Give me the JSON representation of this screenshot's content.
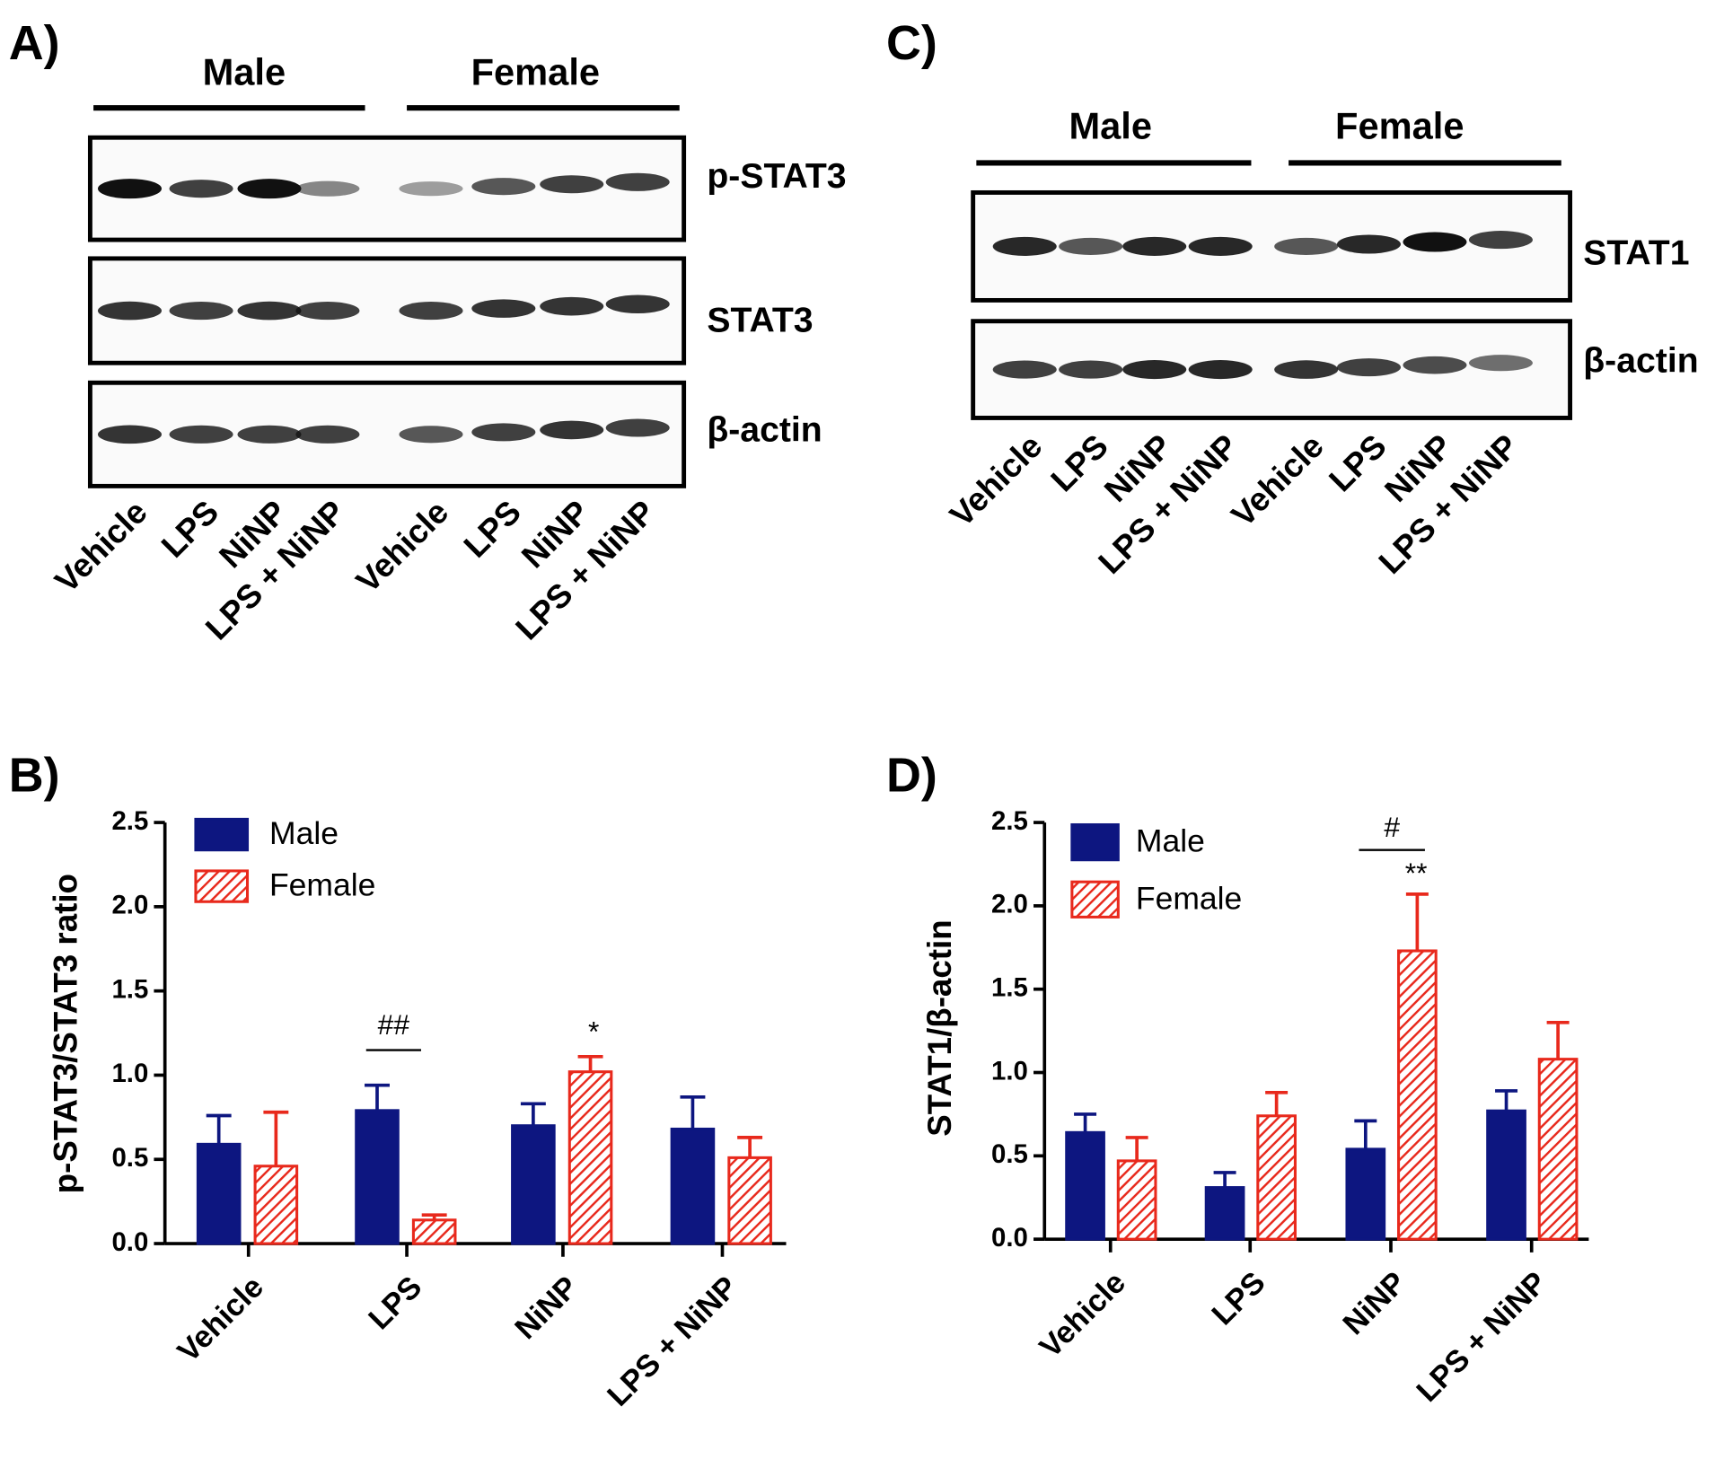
{
  "blots": [
    {
      "panel_label": "A)",
      "groups": [
        "Male",
        "Female"
      ],
      "rows": [
        "p-STAT3",
        "STAT3",
        "β-actin"
      ],
      "lanes": [
        "Vehicle",
        "LPS",
        "NiNP",
        "LPS + NiNP",
        "Vehicle",
        "LPS",
        "NiNP",
        "LPS + NiNP"
      ]
    },
    {
      "panel_label": "C)",
      "groups": [
        "Male",
        "Female"
      ],
      "rows": [
        "STAT1",
        "β-actin"
      ],
      "lanes": [
        "Vehicle",
        "LPS",
        "NiNP",
        "LPS + NiNP",
        "Vehicle",
        "LPS",
        "NiNP",
        "LPS + NiNP"
      ]
    }
  ],
  "chart_data": [
    {
      "type": "bar",
      "panel_label": "B)",
      "y_label": "p-STAT3/STAT3 ratio",
      "categories": [
        "Vehicle",
        "LPS",
        "NiNP",
        "LPS + NiNP"
      ],
      "series": [
        {
          "name": "Male",
          "color": "#0d1680",
          "hatch": false,
          "values": [
            0.59,
            0.79,
            0.7,
            0.68
          ],
          "errors": [
            0.17,
            0.15,
            0.13,
            0.19
          ]
        },
        {
          "name": "Female",
          "color": "#e8291c",
          "hatch": true,
          "values": [
            0.46,
            0.14,
            1.02,
            0.51
          ],
          "errors": [
            0.32,
            0.03,
            0.09,
            0.12
          ]
        }
      ],
      "ylim": [
        0,
        2.5
      ],
      "yticks": [
        {
          "value": 0,
          "label": "0.0"
        },
        0.5,
        {
          "value": 1,
          "label": "1.0"
        },
        1.5,
        {
          "value": 2,
          "label": "2.0"
        },
        2.5
      ],
      "annotations": [
        "##",
        "*"
      ],
      "legend": "upper left",
      "grid": false
    },
    {
      "type": "bar",
      "panel_label": "D)",
      "y_label": "STAT1/β-actin",
      "categories": [
        "Vehicle",
        "LPS",
        "NiNP",
        "LPS + NiNP"
      ],
      "series": [
        {
          "name": "Male",
          "color": "#0d1680",
          "hatch": false,
          "values": [
            0.64,
            0.31,
            0.54,
            0.77
          ],
          "errors": [
            0.11,
            0.09,
            0.17,
            0.12
          ]
        },
        {
          "name": "Female",
          "color": "#e8291c",
          "hatch": true,
          "values": [
            0.47,
            0.74,
            1.73,
            1.08
          ],
          "errors": [
            0.14,
            0.14,
            0.34,
            0.22
          ]
        }
      ],
      "ylim": [
        0,
        2.5
      ],
      "yticks": [
        {
          "value": 0,
          "label": "0.0"
        },
        0.5,
        {
          "value": 1,
          "label": "1.0"
        },
        1.5,
        {
          "value": 2,
          "label": "2.0"
        },
        2.5
      ],
      "annotations": [
        "#",
        "**"
      ],
      "legend": "upper left",
      "grid": false
    }
  ]
}
